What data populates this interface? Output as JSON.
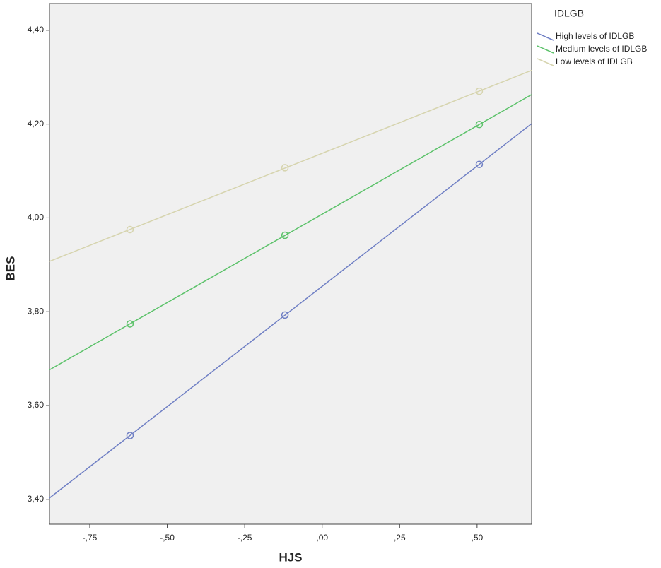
{
  "chart_data": {
    "type": "scatter",
    "x_label": "HJS",
    "y_label": "BES",
    "legend_title": "IDLGB",
    "legend": "right",
    "fit_line": true,
    "x": [
      -0.62,
      -0.12,
      0.507
    ],
    "series": [
      {
        "name": "High levels of IDLGB",
        "color": "#6f7fc4",
        "values": [
          3.536,
          3.793,
          4.114
        ]
      },
      {
        "name": "Medium levels of IDLGB",
        "color": "#5cc26a",
        "values": [
          3.774,
          3.963,
          4.199
        ]
      },
      {
        "name": "Low levels of IDLGB",
        "color": "#d6d4ae",
        "values": [
          3.975,
          4.107,
          4.27
        ]
      }
    ],
    "xlim": [
      -0.88,
      0.676
    ],
    "xticks": [
      {
        "value": -0.75,
        "label": "-,75"
      },
      {
        "value": -0.5,
        "label": "-,50"
      },
      {
        "value": -0.25,
        "label": "-,25"
      },
      {
        "value": 0,
        "label": ",00"
      },
      {
        "value": 0.25,
        "label": ",25"
      },
      {
        "value": 0.5,
        "label": ",50"
      }
    ],
    "ylim": [
      3.347,
      4.457
    ],
    "yticks": [
      {
        "value": 3.4,
        "label": "3,40"
      },
      {
        "value": 3.6,
        "label": "3,60"
      },
      {
        "value": 3.8,
        "label": "3,80"
      },
      {
        "value": 4.0,
        "label": "4,00"
      },
      {
        "value": 4.2,
        "label": "4,20"
      },
      {
        "value": 4.4,
        "label": "4,40"
      }
    ]
  }
}
